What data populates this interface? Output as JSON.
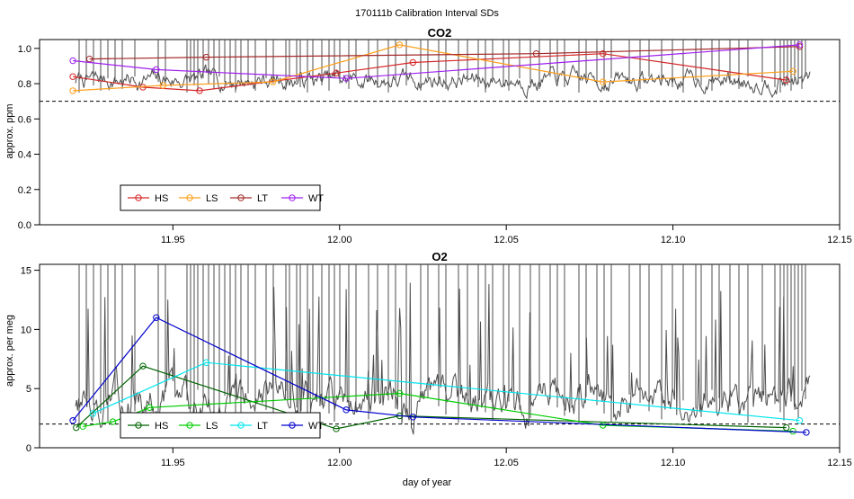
{
  "figure_title": "170111b   Calibration Interval SDs",
  "xlabel": "day of year",
  "colors": {
    "HS_co2": "#d62728",
    "LS_co2": "#ff9f1a",
    "LT_co2": "#a52a2a",
    "WT_co2": "#a020f0",
    "HS_o2": "#006400",
    "LS_o2": "#00cc00",
    "LT_o2": "#00e5ee",
    "WT_o2": "#0000cd",
    "trace": "#4d4d4d"
  },
  "chart_data": [
    {
      "type": "line",
      "title": "CO2",
      "xlabel": "",
      "ylabel": "approx. ppm",
      "xlim": [
        11.91,
        12.15
      ],
      "ylim": [
        0.0,
        1.05
      ],
      "x_ticks": [
        "11.95",
        "12.00",
        "12.05",
        "12.10",
        "12.15"
      ],
      "x_tick_values": [
        11.95,
        12.0,
        12.05,
        12.1,
        12.15
      ],
      "y_ticks": [
        "0.0",
        "0.2",
        "0.4",
        "0.6",
        "0.8",
        "1.0"
      ],
      "y_tick_values": [
        0.0,
        0.2,
        0.4,
        0.6,
        0.8,
        1.0
      ],
      "reference_line": 0.7,
      "legend": [
        "HS",
        "LS",
        "LT",
        "WT"
      ],
      "legend_position": "bottom-left",
      "series": [
        {
          "name": "HS",
          "color": "#d62728",
          "x": [
            11.92,
            11.941,
            11.958,
            11.999,
            12.022,
            12.079,
            12.134
          ],
          "y": [
            0.84,
            0.78,
            0.76,
            0.86,
            0.92,
            0.97,
            0.82
          ]
        },
        {
          "name": "LS",
          "color": "#ff9f1a",
          "x": [
            11.92,
            11.947,
            11.98,
            12.018,
            12.079,
            12.136
          ],
          "y": [
            0.76,
            0.79,
            0.81,
            1.02,
            0.81,
            0.87
          ]
        },
        {
          "name": "LT",
          "color": "#a52a2a",
          "x": [
            11.925,
            11.96,
            12.059,
            12.138
          ],
          "y": [
            0.94,
            0.95,
            0.97,
            1.01
          ]
        },
        {
          "name": "WT",
          "color": "#a020f0",
          "x": [
            11.92,
            11.945,
            12.002,
            12.138
          ],
          "y": [
            0.93,
            0.88,
            0.83,
            1.02
          ]
        }
      ]
    },
    {
      "type": "line",
      "title": "O2",
      "xlabel": "day of year",
      "ylabel": "approx. per meg",
      "xlim": [
        11.91,
        12.15
      ],
      "ylim": [
        0,
        15.5
      ],
      "x_ticks": [
        "11.95",
        "12.00",
        "12.05",
        "12.10",
        "12.15"
      ],
      "x_tick_values": [
        11.95,
        12.0,
        12.05,
        12.1,
        12.15
      ],
      "y_ticks": [
        "0",
        "5",
        "10",
        "15"
      ],
      "y_tick_values": [
        0,
        5,
        10,
        15
      ],
      "reference_line": 2.0,
      "legend": [
        "HS",
        "LS",
        "LT",
        "WT"
      ],
      "legend_position": "bottom-left",
      "series": [
        {
          "name": "HS",
          "color": "#006400",
          "x": [
            11.921,
            11.941,
            11.999,
            12.018,
            12.134
          ],
          "y": [
            1.7,
            6.9,
            1.6,
            2.7,
            1.7
          ]
        },
        {
          "name": "LS",
          "color": "#00cc00",
          "x": [
            11.923,
            11.932,
            11.943,
            12.018,
            12.079,
            12.136
          ],
          "y": [
            1.8,
            2.2,
            3.4,
            4.6,
            1.9,
            1.4
          ]
        },
        {
          "name": "LT",
          "color": "#00e5ee",
          "x": [
            11.926,
            11.96,
            12.138
          ],
          "y": [
            2.9,
            7.2,
            2.3
          ]
        },
        {
          "name": "WT",
          "color": "#0000cd",
          "x": [
            11.92,
            11.945,
            12.002,
            12.022,
            12.14
          ],
          "y": [
            2.3,
            11.0,
            3.2,
            2.6,
            1.3
          ]
        }
      ]
    }
  ]
}
